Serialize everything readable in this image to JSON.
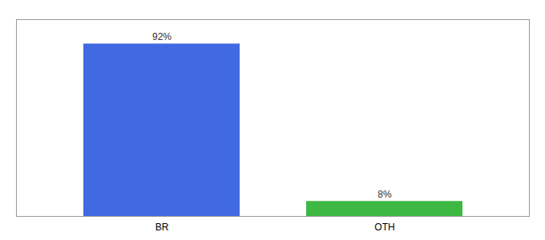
{
  "chart_data": {
    "type": "bar",
    "categories": [
      "BR",
      "OTH"
    ],
    "values": [
      92,
      8
    ],
    "colors": [
      "#4169e1",
      "#3cb843"
    ],
    "value_labels": [
      "92%",
      "8%"
    ],
    "data_labels": true,
    "ylim": [
      0,
      105
    ],
    "tick_labels": "x",
    "grid": false
  }
}
